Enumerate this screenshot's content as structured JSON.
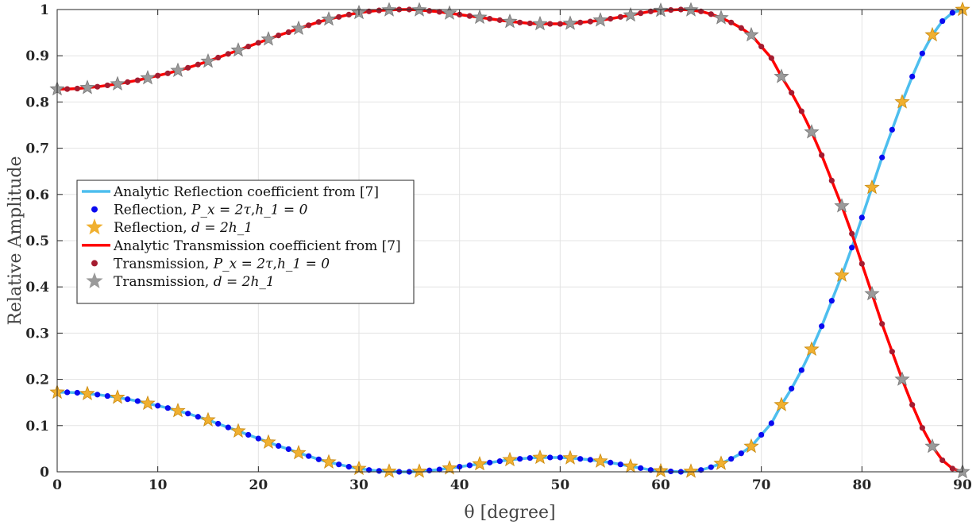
{
  "chart_data": {
    "type": "line",
    "xlabel": "θ [degree]",
    "ylabel": "Relative Amplitude",
    "xlim": [
      0,
      90
    ],
    "ylim": [
      0,
      1
    ],
    "xticks": [
      0,
      10,
      20,
      30,
      40,
      50,
      60,
      70,
      80,
      90
    ],
    "yticks": [
      0,
      0.1,
      0.2,
      0.3,
      0.4,
      0.5,
      0.6,
      0.7,
      0.8,
      0.9,
      1
    ],
    "grid": true,
    "legend_position": "center-left",
    "curve_x": [
      0,
      1,
      2,
      3,
      4,
      5,
      6,
      7,
      8,
      9,
      10,
      11,
      12,
      13,
      14,
      15,
      16,
      17,
      18,
      19,
      20,
      21,
      22,
      23,
      24,
      25,
      26,
      27,
      28,
      29,
      30,
      31,
      32,
      33,
      34,
      35,
      36,
      37,
      38,
      39,
      40,
      41,
      42,
      43,
      44,
      45,
      46,
      47,
      48,
      49,
      50,
      51,
      52,
      53,
      54,
      55,
      56,
      57,
      58,
      59,
      60,
      61,
      62,
      63,
      64,
      65,
      66,
      67,
      68,
      69,
      70,
      71,
      72,
      73,
      74,
      75,
      76,
      77,
      78,
      79,
      80,
      81,
      82,
      83,
      84,
      85,
      86,
      87,
      88,
      89,
      90
    ],
    "reflection_y": [
      0.172,
      0.172,
      0.171,
      0.169,
      0.167,
      0.164,
      0.161,
      0.157,
      0.153,
      0.148,
      0.143,
      0.138,
      0.132,
      0.126,
      0.119,
      0.112,
      0.104,
      0.096,
      0.088,
      0.08,
      0.072,
      0.064,
      0.056,
      0.049,
      0.041,
      0.034,
      0.027,
      0.021,
      0.016,
      0.011,
      0.007,
      0.004,
      0.002,
      0.001,
      0.0,
      0.0,
      0.001,
      0.003,
      0.005,
      0.008,
      0.011,
      0.014,
      0.017,
      0.02,
      0.023,
      0.026,
      0.028,
      0.03,
      0.031,
      0.031,
      0.031,
      0.03,
      0.028,
      0.026,
      0.023,
      0.02,
      0.016,
      0.012,
      0.008,
      0.004,
      0.002,
      0.001,
      0.0,
      0.001,
      0.004,
      0.01,
      0.018,
      0.028,
      0.04,
      0.055,
      0.08,
      0.105,
      0.145,
      0.18,
      0.22,
      0.265,
      0.315,
      0.37,
      0.425,
      0.485,
      0.55,
      0.615,
      0.68,
      0.74,
      0.8,
      0.855,
      0.905,
      0.945,
      0.975,
      0.993,
      1.0
    ],
    "series": [
      {
        "name": "Analytic Reflection coefficient from [7]",
        "kind": "line",
        "color": "#4dbeee",
        "curve": "reflection_y"
      },
      {
        "name": "Reflection, P_x = 2τ, h_1 = 0",
        "kind": "dots",
        "color": "#0a0af0",
        "curve": "reflection_y",
        "step": 1
      },
      {
        "name": "Reflection, d = 2h_1",
        "kind": "stars",
        "color": "#f0b030",
        "curve": "reflection_y",
        "step": 3
      },
      {
        "name": "Analytic Transmission coefficient from [7]",
        "kind": "line",
        "color": "#ff0000",
        "curve": "reflection_y",
        "complement": true
      },
      {
        "name": "Transmission, P_x = 2τ, h_1 = 0",
        "kind": "dots",
        "color": "#a51c30",
        "curve": "reflection_y",
        "complement": true,
        "step": 1
      },
      {
        "name": "Transmission, d = 2h_1",
        "kind": "stars",
        "color": "#9a9a9a",
        "curve": "reflection_y",
        "complement": true,
        "step": 3
      }
    ]
  },
  "legend": [
    {
      "text": "Analytic Reflection coefficient from [7]",
      "marker": "line",
      "color": "#4dbeee"
    },
    {
      "text": "Reflection, ",
      "math": "P_x = 2τ",
      "sep": ",",
      "math2": "h_1 = 0",
      "marker": "dot",
      "color": "#0a0af0"
    },
    {
      "text": "Reflection, ",
      "math": "d = 2h_1",
      "marker": "star",
      "color": "#f0b030"
    },
    {
      "text": "Analytic Transmission coefficient from [7]",
      "marker": "line",
      "color": "#ff0000"
    },
    {
      "text": "Transmission, ",
      "math": "P_x = 2τ",
      "sep": ",",
      "math2": "h_1 = 0",
      "marker": "dot",
      "color": "#a51c30"
    },
    {
      "text": "Transmission, ",
      "math": "d = 2h_1",
      "marker": "star",
      "color": "#9a9a9a"
    }
  ]
}
